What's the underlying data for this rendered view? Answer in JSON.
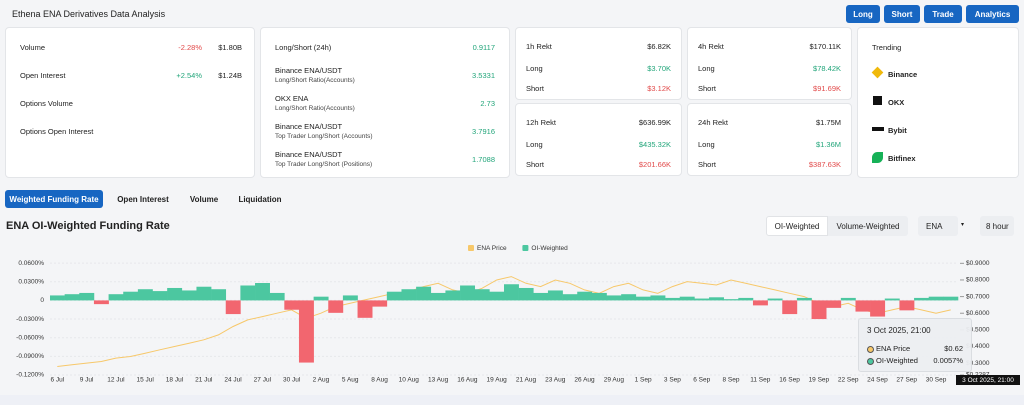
{
  "header": {
    "title": "Ethena ENA Derivatives Data Analysis",
    "buttons": [
      "Long",
      "Short",
      "Trade",
      "Analytics"
    ]
  },
  "market": [
    {
      "label": "Volume",
      "change": "-2.28%",
      "value": "$1.80B"
    },
    {
      "label": "Open Interest",
      "change": "+2.54%",
      "value": "$1.24B"
    },
    {
      "label": "Options Volume"
    },
    {
      "label": "Options Open Interest"
    }
  ],
  "long_short": [
    {
      "label": "Long/Short (24h)",
      "value": "0.9117"
    },
    {
      "label": "Binance ENA/USDT",
      "sublabel": "Long/Short Ratio(Accounts)",
      "value": "3.5331"
    },
    {
      "label": "OKX ENA",
      "sublabel": "Long/Short Ratio(Accounts)",
      "value": "2.73"
    },
    {
      "label": "Binance ENA/USDT",
      "sublabel": "Top Trader Long/Short (Accounts)",
      "value": "3.7916"
    },
    {
      "label": "Binance ENA/USDT",
      "sublabel": "Top Trader Long/Short (Positions)",
      "value": "1.7088"
    }
  ],
  "rekt": [
    {
      "period": "1h Rekt",
      "total": "$6.82K",
      "rows": [
        {
          "label": "Long",
          "value": "$3.70K"
        },
        {
          "label": "Short",
          "value": "$3.12K"
        }
      ]
    },
    {
      "period": "4h Rekt",
      "total": "$170.11K",
      "rows": [
        {
          "label": "Long",
          "value": "$78.42K"
        },
        {
          "label": "Short",
          "value": "$91.69K"
        }
      ]
    },
    {
      "period": "12h Rekt",
      "total": "$636.99K",
      "rows": [
        {
          "label": "Long",
          "value": "$435.32K"
        },
        {
          "label": "Short",
          "value": "$201.66K"
        }
      ]
    },
    {
      "period": "24h Rekt",
      "total": "$1.75M",
      "rows": [
        {
          "label": "Long",
          "value": "$1.36M"
        },
        {
          "label": "Short",
          "value": "$387.63K"
        }
      ]
    }
  ],
  "trending": {
    "title": "Trending",
    "exchanges": [
      "Binance",
      "OKX",
      "Bybit",
      "Bitfinex"
    ]
  },
  "tabs": [
    "Weighted Funding Rate",
    "Open Interest",
    "Volume",
    "Liquidation"
  ],
  "chart_header": {
    "title": "ENA OI-Weighted Funding Rate",
    "toggles": [
      "OI-Weighted",
      "Volume-Weighted"
    ],
    "coin": "ENA",
    "interval": "8 hour"
  },
  "tooltip": {
    "title": "3 Oct 2025, 21:00",
    "rows": [
      {
        "label": "ENA Price",
        "value": "$0.62"
      },
      {
        "label": "OI-Weighted",
        "value": "0.0057%"
      }
    ]
  },
  "chart_data": {
    "type": "funding",
    "categories": [
      "6 Jul",
      null,
      "9 Jul",
      null,
      "12 Jul",
      null,
      "15 Jul",
      null,
      "18 Jul",
      null,
      "21 Jul",
      null,
      "24 Jul",
      null,
      "27 Jul",
      null,
      "30 Jul",
      null,
      "2 Aug",
      null,
      "5 Aug",
      null,
      "8 Aug",
      null,
      "10 Aug",
      null,
      "13 Aug",
      null,
      "16 Aug",
      null,
      "19 Aug",
      null,
      "21 Aug",
      null,
      "23 Aug",
      null,
      "26 Aug",
      null,
      "29 Aug",
      null,
      "1 Sep",
      null,
      "3 Sep",
      null,
      "6 Sep",
      null,
      "8 Sep",
      null,
      "11 Sep",
      null,
      "16 Sep",
      null,
      "19 Sep",
      null,
      "22 Sep",
      null,
      "24 Sep",
      null,
      "27 Sep",
      null,
      "30 Sep",
      null
    ],
    "series": [
      {
        "name": "ENA Price",
        "color": "#f7c86a",
        "axis": "y2",
        "values": [
          0.28,
          0.29,
          0.3,
          0.31,
          0.33,
          0.34,
          0.36,
          0.38,
          0.4,
          0.42,
          0.44,
          0.47,
          0.52,
          0.56,
          0.58,
          0.6,
          0.62,
          0.57,
          0.6,
          0.64,
          0.66,
          0.68,
          0.7,
          0.72,
          0.73,
          0.76,
          0.78,
          0.74,
          0.72,
          0.75,
          0.8,
          0.82,
          0.78,
          0.76,
          0.8,
          0.78,
          0.74,
          0.72,
          0.76,
          0.78,
          0.74,
          0.72,
          0.76,
          0.79,
          0.78,
          0.77,
          0.8,
          0.78,
          0.76,
          0.74,
          0.72,
          0.7,
          0.66,
          0.64,
          0.66,
          0.62,
          0.6,
          0.62,
          0.64,
          0.62,
          0.6,
          0.62
        ]
      },
      {
        "name": "OI-Weighted",
        "color": "#4cc7a0",
        "negative_color": "#f2666f",
        "values": [
          0.008,
          0.01,
          0.012,
          -0.006,
          0.01,
          0.014,
          0.018,
          0.015,
          0.02,
          0.016,
          0.022,
          0.018,
          -0.022,
          0.024,
          0.028,
          0.012,
          -0.015,
          -0.1,
          0.006,
          -0.02,
          0.008,
          -0.028,
          -0.01,
          0.014,
          0.018,
          0.022,
          0.012,
          0.016,
          0.024,
          0.018,
          0.014,
          0.026,
          0.02,
          0.012,
          0.016,
          0.01,
          0.014,
          0.012,
          0.008,
          0.01,
          0.006,
          0.008,
          0.004,
          0.006,
          0.003,
          0.005,
          0.002,
          0.004,
          -0.008,
          0.003,
          -0.022,
          0.004,
          -0.03,
          -0.012,
          0.004,
          -0.018,
          -0.026,
          0.003,
          -0.016,
          0.004,
          0.006,
          0.006
        ]
      }
    ],
    "ylim": [
      -0.12,
      0.065
    ],
    "yticks": [
      {
        "value": 0.06,
        "label": "0.0600%"
      },
      {
        "value": 0.03,
        "label": "0.0300%"
      },
      0,
      {
        "value": -0.03,
        "label": "-0.0300%"
      },
      {
        "value": -0.06,
        "label": "-0.0600%"
      },
      {
        "value": -0.09,
        "label": "-0.0900%"
      },
      {
        "value": -0.12,
        "label": "-0.1200%"
      }
    ],
    "y2lim": [
      0.2287,
      0.92
    ],
    "y2ticks": [
      {
        "value": 0.9,
        "label": "$0.9000"
      },
      {
        "value": 0.8,
        "label": "$0.8000"
      },
      {
        "value": 0.7,
        "label": "$0.7000"
      },
      {
        "value": 0.6,
        "label": "$0.6000"
      },
      {
        "value": 0.5,
        "label": "$0.5000"
      },
      {
        "value": 0.4,
        "label": "$0.4000"
      },
      {
        "value": 0.3,
        "label": "$0.3000"
      },
      {
        "value": 0.2287,
        "label": "$0.2287"
      }
    ],
    "grid": true
  }
}
